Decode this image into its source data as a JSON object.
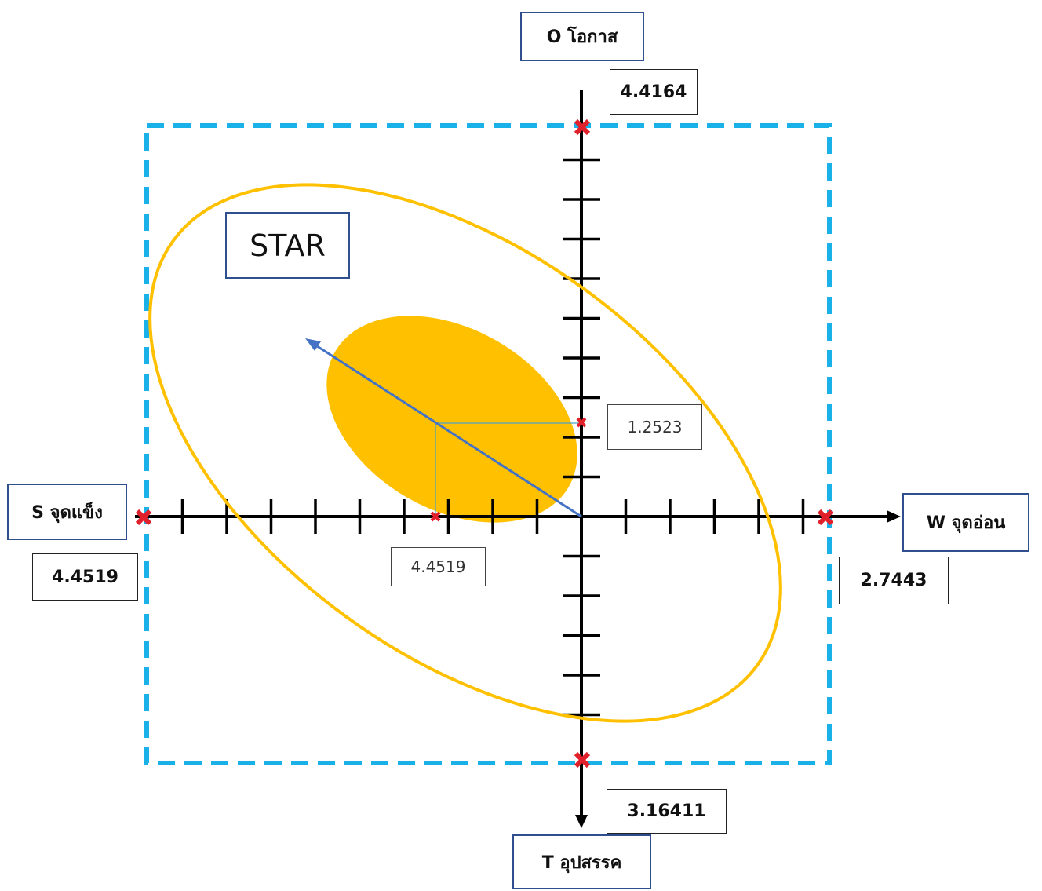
{
  "axes": {
    "top_label": "O โอกาส",
    "bottom_label": "T อุปสรรค",
    "left_label": "S จุดแข็ง",
    "right_label": "W จุดอ่อน"
  },
  "values": {
    "o": "4.4164",
    "t": "3.16411",
    "s": "4.4519",
    "w": "2.7443"
  },
  "point": {
    "x_label": "4.4519",
    "y_label": "1.2523"
  },
  "zone_label": "STAR",
  "colors": {
    "frame": "#1ab0e8",
    "ellipse": "#ffc000",
    "vector": "#4472c4",
    "marker": "#e0202a",
    "axis": "#000000"
  }
}
